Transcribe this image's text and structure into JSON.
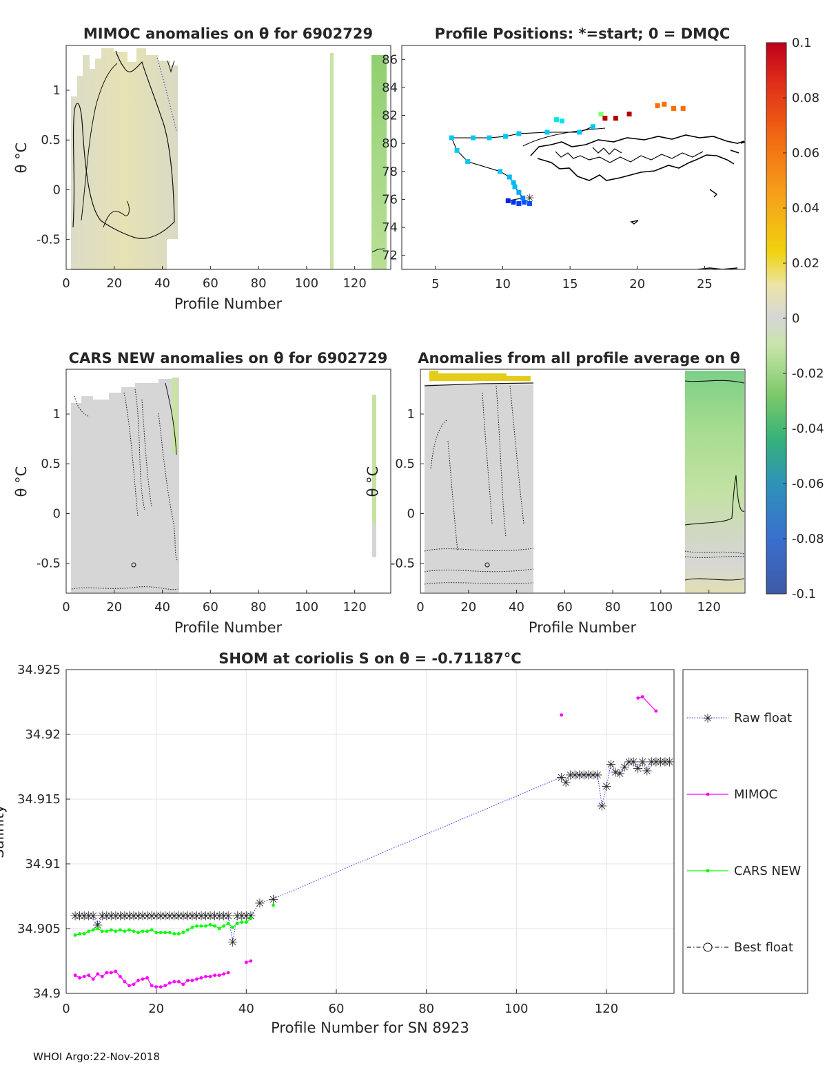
{
  "footer": "WHOI Argo:22-Nov-2018",
  "colors": {
    "raw": "#2626ff",
    "mimoc": "#ff00ff",
    "cars": "#00ff00",
    "best": "#000000",
    "grid": "#e3e3e3",
    "axis": "#262626"
  },
  "chart_data": [
    {
      "id": "mimoc",
      "type": "heatmap",
      "title": "MIMOC anomalies on θ  for 6902729",
      "xlabel": "Profile Number",
      "ylabel": "θ °C",
      "xlim": [
        0,
        135
      ],
      "ylim": [
        -0.8,
        1.45
      ],
      "xticks": [
        0,
        20,
        40,
        60,
        80,
        100,
        120
      ],
      "yticks": [
        -0.5,
        0,
        0.5,
        1
      ],
      "ytick_labels": [
        "-0.5",
        "0",
        "0.5",
        "1"
      ]
    },
    {
      "id": "positions",
      "type": "scatter",
      "title": "Profile Positions: *=start; 0 = DMQC",
      "xlim": [
        2.5,
        28
      ],
      "ylim": [
        71,
        87
      ],
      "xticks": [
        5,
        10,
        15,
        20,
        25
      ],
      "yticks": [
        72,
        74,
        76,
        78,
        80,
        82,
        84,
        86
      ],
      "points": [
        {
          "lon": 10.4,
          "lat": 75.9,
          "v": -0.085
        },
        {
          "lon": 10.8,
          "lat": 75.8,
          "v": -0.08
        },
        {
          "lon": 11.2,
          "lat": 75.7,
          "v": -0.075
        },
        {
          "lon": 11.6,
          "lat": 75.8,
          "v": -0.07
        },
        {
          "lon": 12.0,
          "lat": 75.7,
          "v": -0.07
        },
        {
          "lon": 11.5,
          "lat": 76.1,
          "v": -0.06
        },
        {
          "lon": 11.2,
          "lat": 76.5,
          "v": -0.05
        },
        {
          "lon": 10.9,
          "lat": 76.9,
          "v": -0.045
        },
        {
          "lon": 10.8,
          "lat": 77.2,
          "v": -0.045
        },
        {
          "lon": 10.5,
          "lat": 77.6,
          "v": -0.045
        },
        {
          "lon": 9.8,
          "lat": 78.0,
          "v": -0.04
        },
        {
          "lon": 7.4,
          "lat": 78.7,
          "v": -0.04
        },
        {
          "lon": 6.6,
          "lat": 79.5,
          "v": -0.04
        },
        {
          "lon": 6.2,
          "lat": 80.4,
          "v": -0.04
        },
        {
          "lon": 7.8,
          "lat": 80.4,
          "v": -0.04
        },
        {
          "lon": 9.0,
          "lat": 80.4,
          "v": -0.04
        },
        {
          "lon": 10.2,
          "lat": 80.5,
          "v": -0.04
        },
        {
          "lon": 11.2,
          "lat": 80.7,
          "v": -0.04
        },
        {
          "lon": 13.3,
          "lat": 80.8,
          "v": -0.04
        },
        {
          "lon": 15.7,
          "lat": 80.8,
          "v": -0.04
        },
        {
          "lon": 16.7,
          "lat": 81.2,
          "v": -0.04
        },
        {
          "lon": 14.0,
          "lat": 81.7,
          "v": -0.03
        },
        {
          "lon": 14.4,
          "lat": 81.6,
          "v": -0.03
        },
        {
          "lon": 17.3,
          "lat": 82.1,
          "v": -0.01
        },
        {
          "lon": 17.6,
          "lat": 81.8,
          "v": 0.1
        },
        {
          "lon": 18.4,
          "lat": 81.8,
          "v": 0.1
        },
        {
          "lon": 19.4,
          "lat": 82.1,
          "v": 0.1
        },
        {
          "lon": 21.5,
          "lat": 82.7,
          "v": 0.06
        },
        {
          "lon": 22.0,
          "lat": 82.8,
          "v": 0.06
        },
        {
          "lon": 22.7,
          "lat": 82.5,
          "v": 0.06
        },
        {
          "lon": 23.4,
          "lat": 82.5,
          "v": 0.06
        }
      ],
      "track": [
        [
          10.4,
          75.9
        ],
        [
          11.5,
          76.1
        ],
        [
          10.9,
          76.9
        ],
        [
          10.5,
          77.6
        ],
        [
          9.8,
          78.0
        ],
        [
          7.4,
          78.7
        ],
        [
          6.6,
          79.5
        ],
        [
          6.2,
          80.4
        ],
        [
          7.8,
          80.4
        ],
        [
          9.0,
          80.4
        ],
        [
          10.2,
          80.5
        ],
        [
          11.2,
          80.7
        ],
        [
          13.3,
          80.8
        ],
        [
          15.7,
          80.8
        ],
        [
          16.7,
          81.2
        ]
      ]
    },
    {
      "id": "colorbar",
      "type": "heatmap",
      "vlim": [
        -0.1,
        0.1
      ],
      "ticks": [
        -0.1,
        -0.08,
        -0.06,
        -0.04,
        -0.02,
        0,
        0.02,
        0.04,
        0.06,
        0.08,
        0.1
      ],
      "tick_labels": [
        "-0.1",
        "-0.08",
        "-0.06",
        "-0.04",
        "-0.02",
        "0",
        "0.02",
        "0.04",
        "0.06",
        "0.08",
        "0.1"
      ]
    },
    {
      "id": "cars",
      "type": "heatmap",
      "title": "CARS NEW anomalies on θ for 6902729",
      "xlabel": "Profile Number",
      "ylabel": "θ °C",
      "xlim": [
        0,
        135
      ],
      "ylim": [
        -0.8,
        1.45
      ],
      "xticks": [
        0,
        20,
        40,
        60,
        80,
        100,
        120
      ],
      "yticks": [
        -0.5,
        0,
        0.5,
        1
      ],
      "ytick_labels": [
        "-0.5",
        "0",
        "0.5",
        "1"
      ]
    },
    {
      "id": "allavg",
      "type": "heatmap",
      "title": "Anomalies from all profile average on θ",
      "xlabel": "Profile Number",
      "ylabel": "θ °C",
      "xlim": [
        0,
        135
      ],
      "ylim": [
        -0.8,
        1.45
      ],
      "xticks": [
        0,
        20,
        40,
        60,
        80,
        100,
        120
      ],
      "yticks": [
        -0.5,
        0,
        0.5,
        1
      ],
      "ytick_labels": [
        "-0.5",
        "0",
        "0.5",
        "1"
      ]
    },
    {
      "id": "salinity",
      "type": "line",
      "title": "SHOM at coriolis S on θ = -0.71187°C",
      "xlabel": "Profile Number for SN 8923",
      "ylabel": "Salinity",
      "xlim": [
        0,
        135
      ],
      "ylim": [
        34.9,
        34.925
      ],
      "xticks": [
        0,
        20,
        40,
        60,
        80,
        100,
        120
      ],
      "yticks": [
        34.9,
        34.905,
        34.91,
        34.915,
        34.92,
        34.925
      ],
      "ytick_labels": [
        "34.9",
        "34.905",
        "34.91",
        "34.915",
        "34.92",
        "34.925"
      ],
      "legend": [
        "Raw float",
        "MIMOC",
        "CARS NEW",
        "Best float"
      ],
      "series": [
        {
          "name": "Raw float",
          "x": [
            2,
            3,
            4,
            5,
            6,
            7,
            8,
            9,
            10,
            11,
            12,
            13,
            14,
            15,
            16,
            17,
            18,
            19,
            20,
            21,
            22,
            23,
            24,
            25,
            26,
            27,
            28,
            29,
            30,
            31,
            32,
            33,
            34,
            35,
            36,
            37,
            38,
            39,
            40,
            41,
            43,
            46,
            110,
            111,
            112,
            113,
            114,
            115,
            116,
            117,
            118,
            119,
            120,
            121,
            122,
            123,
            124,
            125,
            126,
            127,
            128,
            129,
            130,
            131,
            132,
            133,
            134
          ],
          "y": [
            34.906,
            34.906,
            34.906,
            34.906,
            34.906,
            34.9053,
            34.906,
            34.906,
            34.906,
            34.906,
            34.906,
            34.906,
            34.906,
            34.906,
            34.906,
            34.906,
            34.906,
            34.906,
            34.906,
            34.906,
            34.906,
            34.906,
            34.906,
            34.906,
            34.906,
            34.906,
            34.906,
            34.906,
            34.906,
            34.906,
            34.906,
            34.906,
            34.906,
            34.906,
            34.906,
            34.904,
            34.906,
            34.906,
            34.906,
            34.906,
            34.907,
            34.9073,
            34.9167,
            34.9163,
            34.9169,
            34.9169,
            34.9169,
            34.9169,
            34.9169,
            34.9169,
            34.9169,
            34.9145,
            34.916,
            34.9177,
            34.9171,
            34.917,
            34.9175,
            34.9179,
            34.9179,
            34.9174,
            34.9179,
            34.9172,
            34.9179,
            34.9179,
            34.9179,
            34.9179,
            34.9179
          ]
        },
        {
          "name": "MIMOC",
          "x": [
            2,
            3,
            4,
            5,
            6,
            7,
            8,
            9,
            10,
            11,
            12,
            13,
            14,
            15,
            16,
            17,
            18,
            19,
            20,
            21,
            22,
            23,
            24,
            25,
            26,
            27,
            28,
            29,
            30,
            31,
            32,
            33,
            34,
            35,
            36,
            40,
            41,
            110,
            127,
            128,
            131
          ],
          "y": [
            34.9014,
            34.9012,
            34.9013,
            34.9014,
            34.9011,
            34.9015,
            34.9013,
            34.9016,
            34.9016,
            34.9017,
            34.9013,
            34.9009,
            34.9006,
            34.9007,
            34.901,
            34.9011,
            34.9012,
            34.9006,
            34.9005,
            34.9005,
            34.9006,
            34.9008,
            34.9009,
            34.9009,
            34.9007,
            34.901,
            34.901,
            34.9011,
            34.9012,
            34.9013,
            34.9013,
            34.9014,
            34.9014,
            34.9015,
            34.9016,
            34.9024,
            34.9025,
            34.9215,
            34.9228,
            34.9229,
            34.9218
          ]
        },
        {
          "name": "CARS NEW",
          "x": [
            2,
            3,
            4,
            5,
            6,
            7,
            8,
            9,
            10,
            11,
            12,
            13,
            14,
            15,
            16,
            17,
            18,
            19,
            20,
            21,
            22,
            23,
            24,
            25,
            26,
            27,
            28,
            29,
            30,
            31,
            32,
            33,
            34,
            35,
            36,
            37,
            38,
            39,
            40,
            41,
            46
          ],
          "y": [
            34.9045,
            34.9046,
            34.9046,
            34.9048,
            34.9049,
            34.905,
            34.9048,
            34.9048,
            34.9049,
            34.9048,
            34.9049,
            34.9048,
            34.9049,
            34.9048,
            34.9047,
            34.9048,
            34.9048,
            34.9049,
            34.9047,
            34.9047,
            34.9047,
            34.9047,
            34.9046,
            34.9046,
            34.9047,
            34.9049,
            34.9051,
            34.9052,
            34.9052,
            34.9052,
            34.9053,
            34.9052,
            34.905,
            34.9052,
            34.9054,
            34.9051,
            34.9054,
            34.9055,
            34.9055,
            34.9058,
            34.9068
          ]
        },
        {
          "name": "Best float",
          "x": [],
          "y": []
        }
      ]
    }
  ]
}
